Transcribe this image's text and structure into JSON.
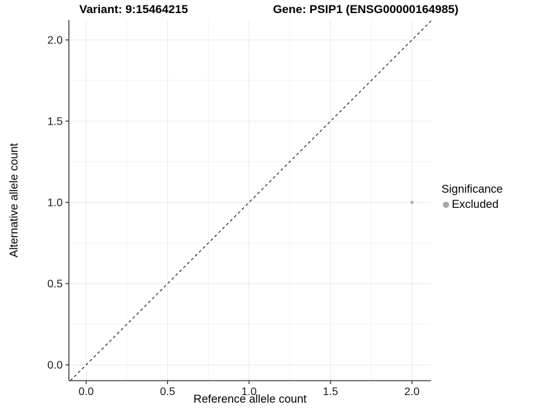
{
  "chart_data": {
    "type": "scatter",
    "title_left": "Variant: 9:15464215",
    "title_right": "Gene: PSIP1 (ENSG00000164985)",
    "xlabel": "Reference allele count",
    "ylabel": "Alternative allele count",
    "xlim": [
      -0.106,
      2.118
    ],
    "ylim": [
      -0.097,
      2.123
    ],
    "xticks": [
      0,
      0.5,
      1,
      1.5,
      2
    ],
    "xtick_labels": [
      "0.0",
      "0.5",
      "1.0",
      "1.5",
      "2.0"
    ],
    "yticks": [
      0,
      0.5,
      1,
      1.5,
      2
    ],
    "ytick_labels": [
      "0.0",
      "0.5",
      "1.0",
      "1.5",
      "2.0"
    ],
    "xticks_minor": [
      0.25,
      0.75,
      1.25,
      1.75
    ],
    "yticks_minor": [
      0.25,
      0.75,
      1.25,
      1.75
    ],
    "grid": "major+minor",
    "abline": {
      "slope": 1,
      "intercept": 0,
      "style": "dashed"
    },
    "points": [
      {
        "x": 2.0,
        "y": 1.0,
        "series": "Excluded"
      }
    ],
    "legend": {
      "title": "Significance",
      "position": "right",
      "entries": [
        {
          "label": "Excluded",
          "color": "#a6a6a6"
        }
      ]
    },
    "colors": {
      "point": "#b4b4b4",
      "grid_major": "#e8e8e8",
      "grid_minor": "#f3f3f3",
      "axis_line": "#2b2b2b",
      "abline": "#1a1a1a",
      "tick_text": "#1a1a1a"
    }
  }
}
